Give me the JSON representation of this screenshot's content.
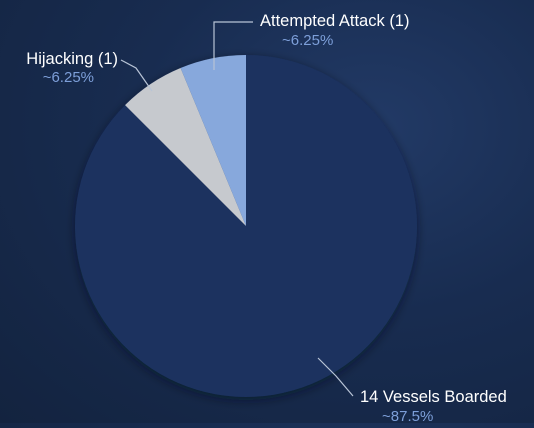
{
  "chart_data": {
    "type": "pie",
    "slices": [
      {
        "label": "14 Vessels Boarded",
        "count": 14,
        "value": 87.5,
        "percent_label": "~87.5%",
        "color": "#1b325e"
      },
      {
        "label": "Hijacking (1)",
        "count": 1,
        "value": 6.25,
        "percent_label": "~6.25%",
        "color": "#c6c9ce"
      },
      {
        "label": "Attempted Attack (1)",
        "count": 1,
        "value": 6.25,
        "percent_label": "~6.25%",
        "color": "#87a8dc"
      }
    ],
    "start": "12 o'clock",
    "direction": "clockwise, largest slice first",
    "label_color": "#ffffff",
    "percent_color": "#7d9fd9",
    "leader_color": "#b8c4d6"
  }
}
